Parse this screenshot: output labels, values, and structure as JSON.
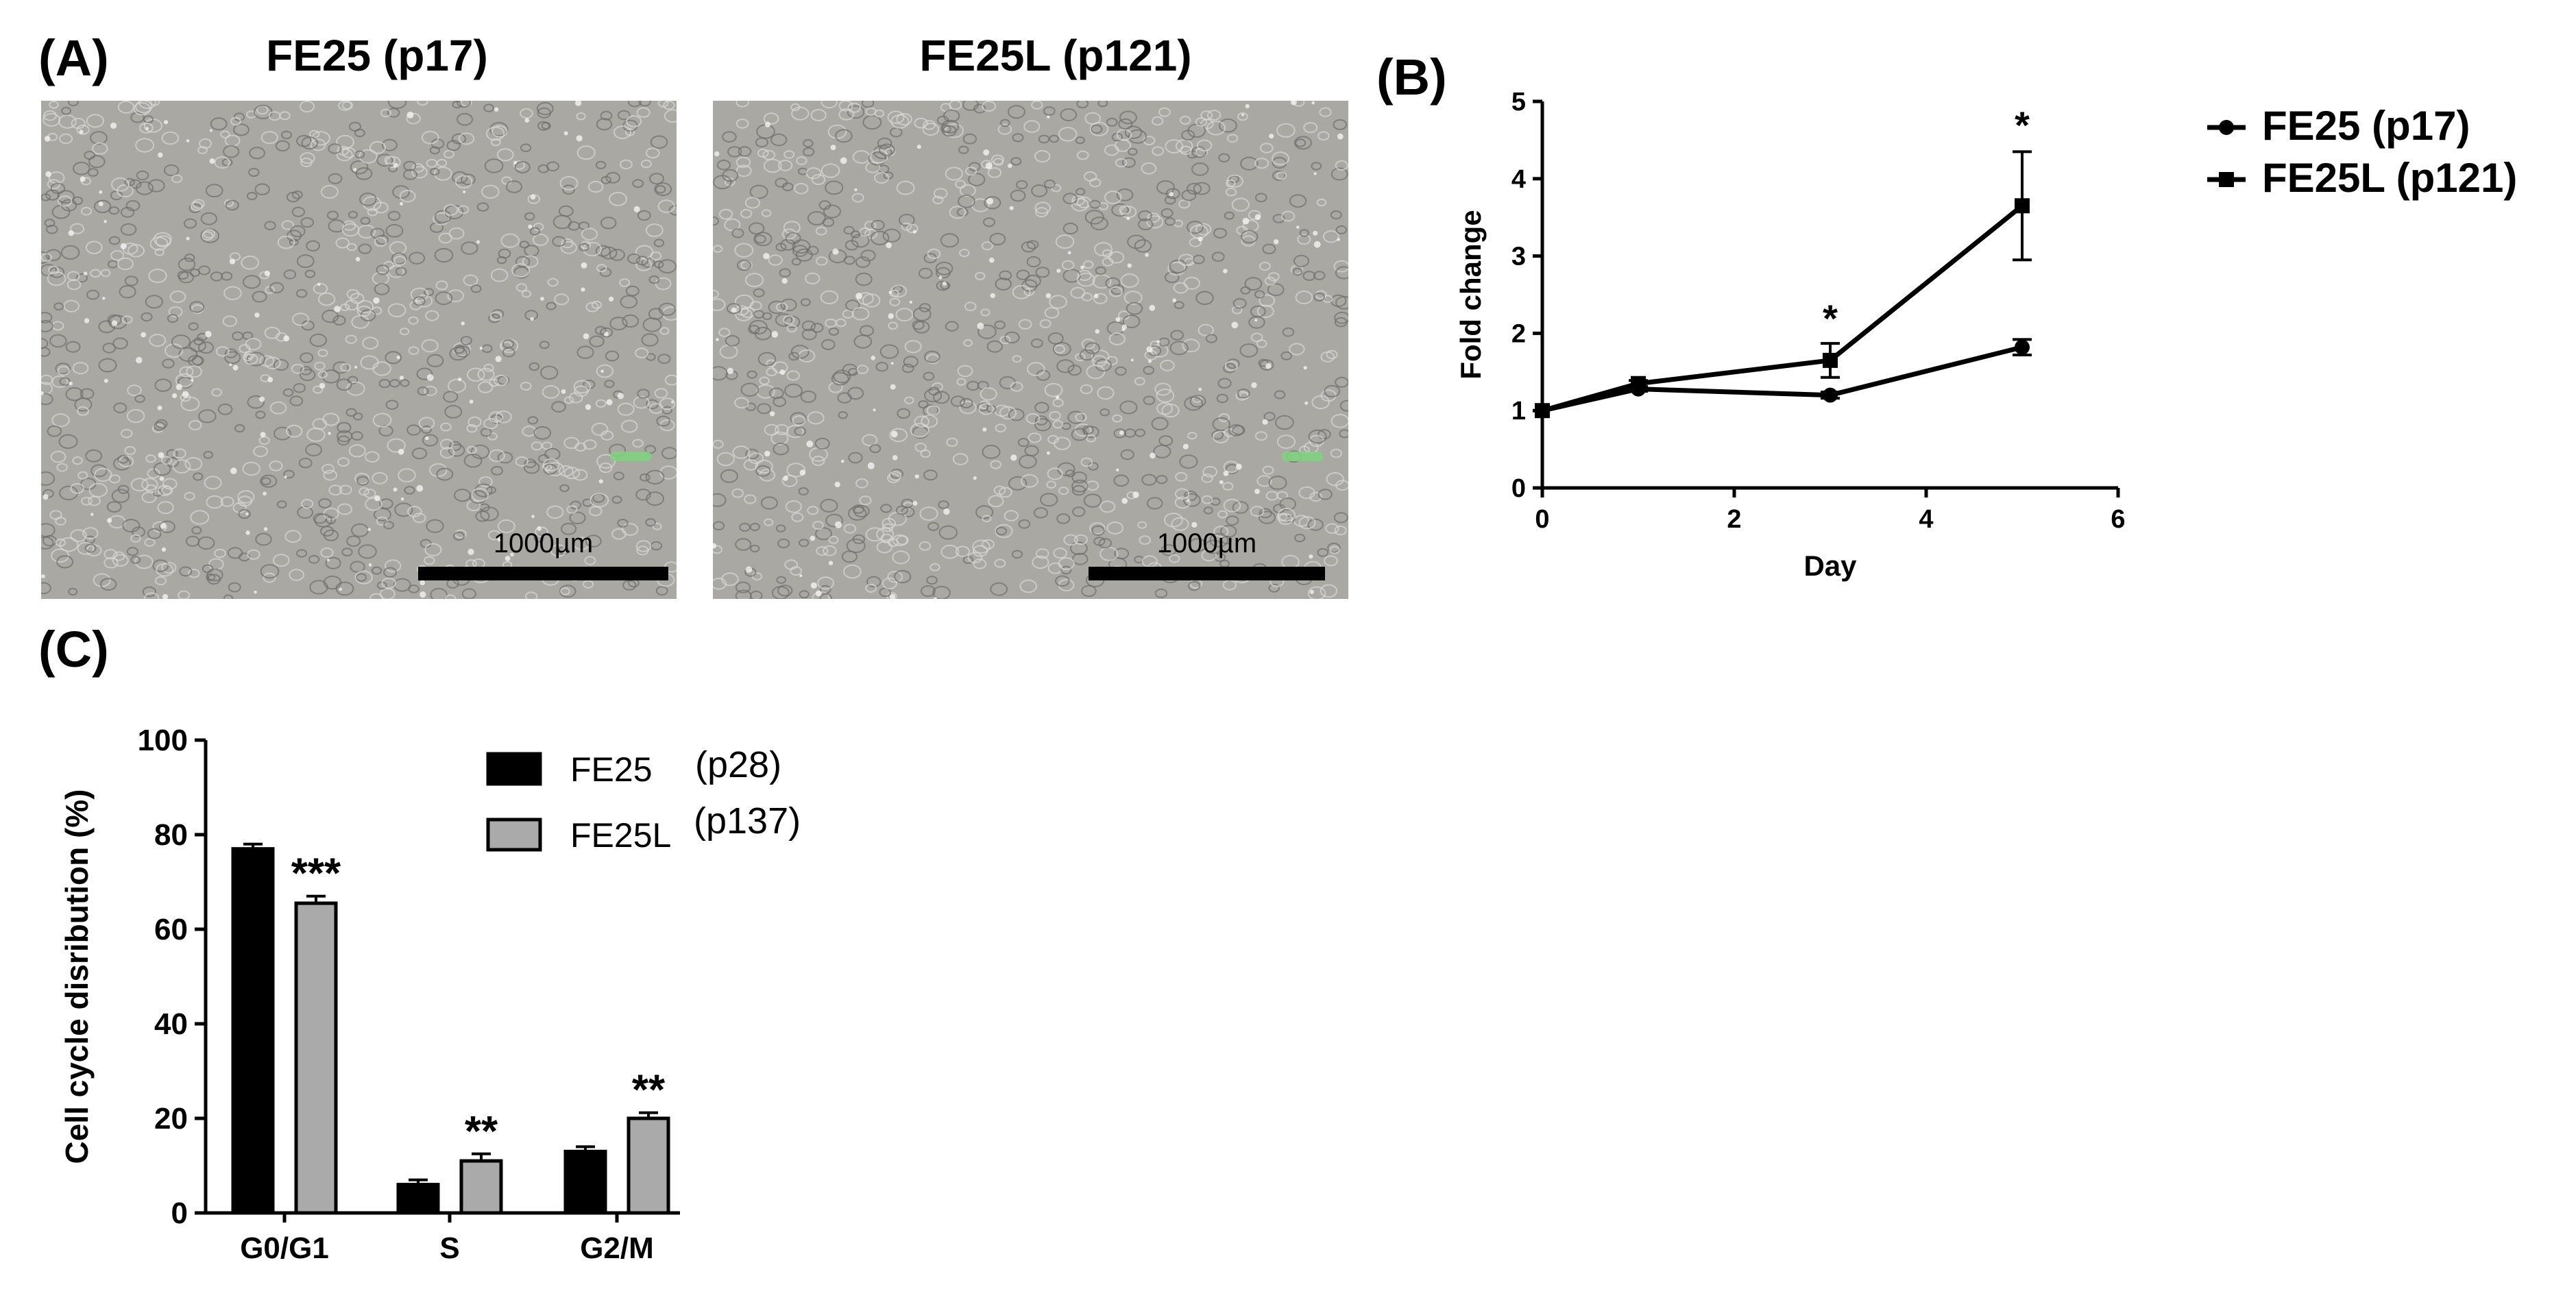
{
  "panel_a": {
    "letter": "(A)",
    "images": [
      {
        "title": "FE25 (p17)",
        "scale_bar_label": "1000µm"
      },
      {
        "title": "FE25L (p121)",
        "scale_bar_label": "1000µm"
      }
    ]
  },
  "panel_b": {
    "letter": "(B)"
  },
  "panel_c": {
    "letter": "(C)"
  },
  "chart_data": [
    {
      "id": "B",
      "type": "line",
      "xlabel": "Day",
      "ylabel": "Fold change",
      "xlim": [
        0,
        6
      ],
      "ylim": [
        0,
        5
      ],
      "xticks": [
        "0",
        "2",
        "4",
        "6"
      ],
      "yticks": [
        "0",
        "1",
        "2",
        "3",
        "4",
        "5"
      ],
      "legend_position": "top-right",
      "series": [
        {
          "name": "FE25 (p17)",
          "marker": "circle",
          "x": [
            0,
            1,
            3,
            5
          ],
          "y": [
            1.0,
            1.28,
            1.2,
            1.82
          ],
          "err": [
            0,
            0.03,
            0.04,
            0.1
          ]
        },
        {
          "name": "FE25L (p121)",
          "marker": "square",
          "x": [
            0,
            1,
            3,
            5
          ],
          "y": [
            1.0,
            1.35,
            1.65,
            3.65
          ],
          "err": [
            0,
            0.04,
            0.22,
            0.7
          ]
        }
      ],
      "annotations": [
        {
          "x": 3,
          "y": 2.2,
          "text": "*"
        },
        {
          "x": 5,
          "y": 4.7,
          "text": "*"
        }
      ]
    },
    {
      "id": "C",
      "type": "bar",
      "ylabel": "Cell cycle disribution (%)",
      "ylim": [
        0,
        100
      ],
      "yticks": [
        "0",
        "20",
        "40",
        "60",
        "80",
        "100"
      ],
      "categories": [
        "G0/G1",
        "S",
        "G2/M"
      ],
      "legend_position": "top-right",
      "series": [
        {
          "name": "FE25",
          "passage": "(p28)",
          "color": "#000000",
          "values": [
            77,
            6,
            13
          ],
          "err": [
            1,
            1,
            1
          ]
        },
        {
          "name": "FE25L",
          "passage": "(p137)",
          "color": "#aaaaaa",
          "values": [
            65.5,
            11,
            20
          ],
          "err": [
            1.5,
            1.5,
            1.2
          ]
        }
      ],
      "annotations": [
        "***",
        "**",
        "**"
      ]
    }
  ]
}
